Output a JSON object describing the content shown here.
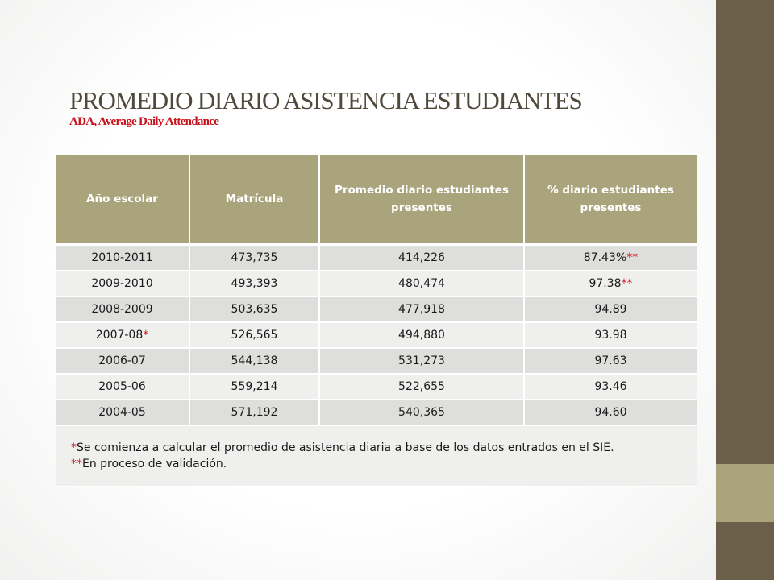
{
  "title": "PROMEDIO DIARIO ASISTENCIA ESTUDIANTES",
  "subtitle": "ADA, Average Daily Attendance",
  "table": {
    "headers": [
      "Año escolar",
      "Matrícula",
      "Promedio  diario estudiantes presentes",
      "% diario estudiantes presentes"
    ],
    "rows": [
      {
        "year": "2010-2011",
        "year_mark": "",
        "enrollment": "473,735",
        "avg": "414,226",
        "pct": "87.43%",
        "pct_mark": "**"
      },
      {
        "year": "2009-2010",
        "year_mark": "",
        "enrollment": "493,393",
        "avg": "480,474",
        "pct": "97.38",
        "pct_mark": "**"
      },
      {
        "year": "2008-2009",
        "year_mark": "",
        "enrollment": "503,635",
        "avg": "477,918",
        "pct": "94.89",
        "pct_mark": ""
      },
      {
        "year": "2007-08",
        "year_mark": "*",
        "enrollment": "526,565",
        "avg": "494,880",
        "pct": "93.98",
        "pct_mark": ""
      },
      {
        "year": "2006-07",
        "year_mark": "",
        "enrollment": "544,138",
        "avg": "531,273",
        "pct": "97.63",
        "pct_mark": ""
      },
      {
        "year": "2005-06",
        "year_mark": "",
        "enrollment": "559,214",
        "avg": "522,655",
        "pct": "93.46",
        "pct_mark": ""
      },
      {
        "year": "2004-05",
        "year_mark": "",
        "enrollment": "571,192",
        "avg": "540,365",
        "pct": "94.60",
        "pct_mark": ""
      }
    ],
    "notes": [
      {
        "mark": "*",
        "text": "Se comienza a calcular el promedio de asistencia diaria a base de los datos entrados en el SIE."
      },
      {
        "mark": "**",
        "text": "En proceso de validación."
      }
    ]
  },
  "colors": {
    "header_bg": "#a9a47c",
    "sidebar": "#6b5f49",
    "accent_red": "#d7191d",
    "title": "#514a3c"
  }
}
